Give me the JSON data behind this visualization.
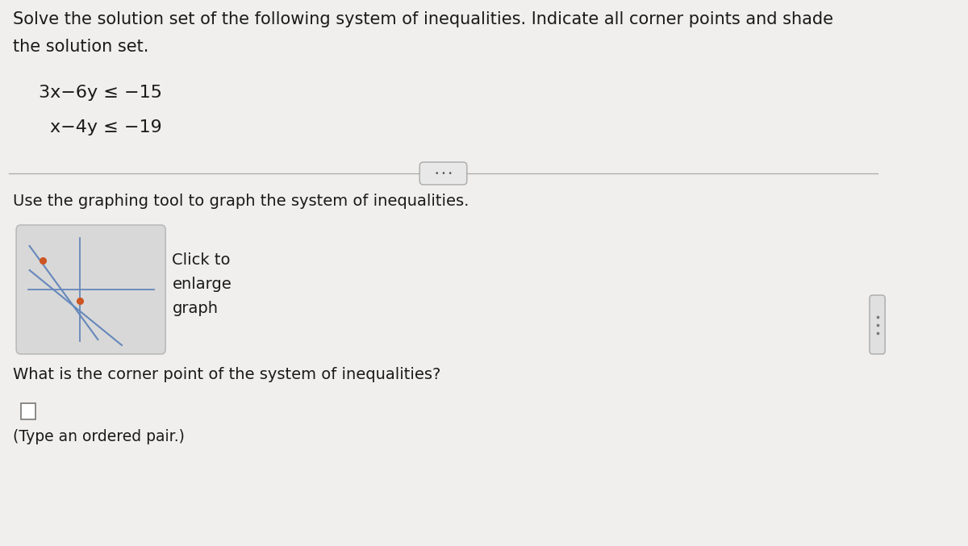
{
  "bg_color": "#f0efee",
  "title_line1": "Solve the solution set of the following system of inequalities. Indicate all corner points and shade",
  "title_line2": "the solution set.",
  "ineq1": "3x−6y ≤ −15",
  "ineq2": "x−4y ≤ −19",
  "instruction": "Use the graphing tool to graph the system of inequalities.",
  "btn_line1": "Click to",
  "btn_line2": "enlarge",
  "btn_line3": "graph",
  "question": "What is the corner point of the system of inequalities?",
  "answer_hint": "(Type an ordered pair.)",
  "text_color": "#1a1a1a",
  "divider_color": "#aaaaaa",
  "graph_bg": "#d8d8d8",
  "graph_border": "#bbbbbb",
  "graph_line_color": "#6688bb",
  "graph_dot_color": "#cc5522",
  "pill_bg": "#e8e8e8",
  "pill_border": "#aaaaaa",
  "handle_bg": "#e0e0e0",
  "handle_border": "#aaaaaa",
  "checkbox_bg": "#ffffff",
  "checkbox_border": "#777777",
  "answer_color": "#3355aa"
}
